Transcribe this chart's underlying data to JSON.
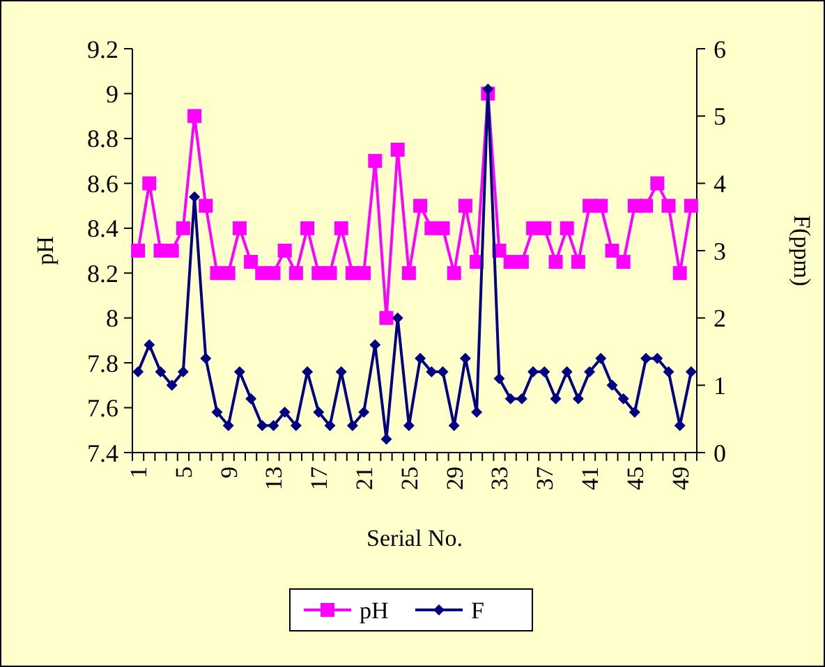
{
  "chart_data": {
    "type": "line",
    "xlabel": "Serial No.",
    "ylabel": "pH",
    "y2label": "F(ppm)",
    "categories": [
      "1",
      null,
      null,
      null,
      "5",
      null,
      null,
      null,
      "9",
      null,
      null,
      null,
      "13",
      null,
      null,
      null,
      "17",
      null,
      null,
      null,
      "21",
      null,
      null,
      null,
      "25",
      null,
      null,
      null,
      "29",
      null,
      null,
      null,
      "33",
      null,
      null,
      null,
      "37",
      null,
      null,
      null,
      "41",
      null,
      null,
      null,
      "45",
      null,
      null,
      null,
      "49",
      null
    ],
    "series": [
      {
        "name": "pH",
        "color": "#ff00ff",
        "marker": "square",
        "values": [
          8.3,
          8.6,
          8.3,
          8.3,
          8.4,
          8.9,
          8.5,
          8.2,
          8.2,
          8.4,
          8.25,
          8.2,
          8.2,
          8.3,
          8.2,
          8.4,
          8.2,
          8.2,
          8.4,
          8.2,
          8.2,
          8.7,
          8.0,
          8.75,
          8.2,
          8.5,
          8.4,
          8.4,
          8.2,
          8.5,
          8.25,
          9.0,
          8.3,
          8.25,
          8.25,
          8.4,
          8.4,
          8.25,
          8.4,
          8.25,
          8.5,
          8.5,
          8.3,
          8.25,
          8.5,
          8.5,
          8.6,
          8.5,
          8.2,
          8.5
        ]
      },
      {
        "name": "F",
        "color": "#000080",
        "marker": "diamond",
        "axis": "y2",
        "values": [
          1.2,
          1.6,
          1.2,
          1.0,
          1.2,
          3.8,
          1.4,
          0.6,
          0.4,
          1.2,
          0.8,
          0.4,
          0.4,
          0.6,
          0.4,
          1.2,
          0.6,
          0.4,
          1.2,
          0.4,
          0.6,
          1.6,
          0.2,
          2.0,
          0.4,
          1.4,
          1.2,
          1.2,
          0.4,
          1.4,
          0.6,
          5.4,
          1.1,
          0.8,
          0.8,
          1.2,
          1.2,
          0.8,
          1.2,
          0.8,
          1.2,
          1.4,
          1.0,
          0.8,
          0.6,
          1.4,
          1.4,
          1.2,
          0.4,
          1.2
        ]
      }
    ],
    "ylim": [
      7.4,
      9.2
    ],
    "yticks": [
      7.4,
      7.6,
      7.8,
      8,
      8.2,
      8.4,
      8.6,
      8.8,
      9,
      9.2
    ],
    "y2lim": [
      0,
      6
    ],
    "y2ticks": [
      0,
      1,
      2,
      3,
      4,
      5,
      6
    ],
    "legend": "bottom",
    "grid": false
  }
}
